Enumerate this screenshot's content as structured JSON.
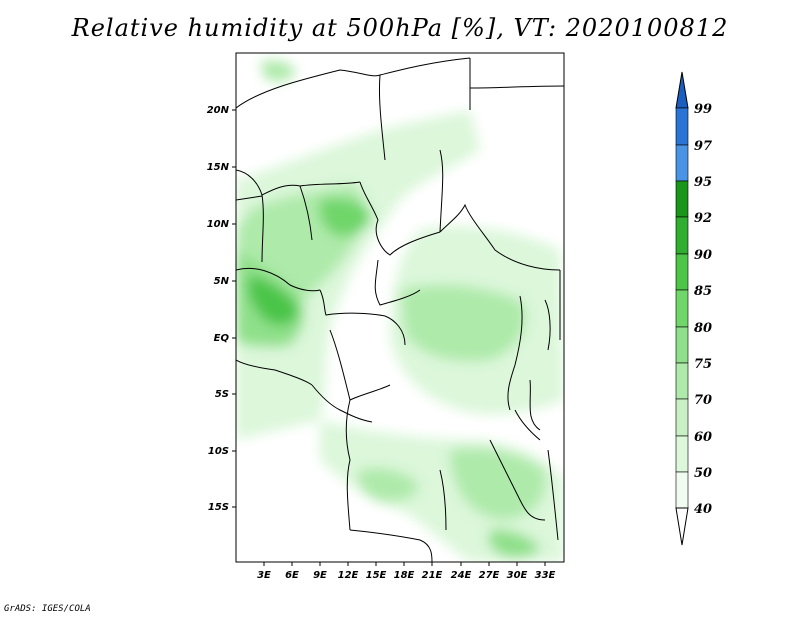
{
  "title": "Relative humidity at 500hPa [%], VT: 2020100812",
  "credit": "GrADS: IGES/COLA",
  "map": {
    "lat_labels": [
      "20N",
      "15N",
      "10N",
      "5N",
      "EQ",
      "5S",
      "10S",
      "15S"
    ],
    "lon_labels": [
      "3E",
      "6E",
      "9E",
      "12E",
      "15E",
      "18E",
      "21E",
      "24E",
      "27E",
      "30E",
      "33E"
    ]
  },
  "colorbar": {
    "labels": [
      "99",
      "97",
      "95",
      "92",
      "90",
      "85",
      "80",
      "75",
      "70",
      "60",
      "50",
      "40"
    ],
    "colors": {
      "c40_50": "#f0fcef",
      "c50_60": "#dcf7da",
      "c60_70": "#c8f0c4",
      "c70_75": "#aeeaaa",
      "c75_80": "#8fe08a",
      "c80_85": "#6fd66a",
      "c85_90": "#4cc548",
      "c90_92": "#2fae2f",
      "c92_95": "#1a961a",
      "c95_97": "#4a94e6",
      "c97_99": "#2a74d6",
      "c99": "#1a5fc0"
    }
  }
}
